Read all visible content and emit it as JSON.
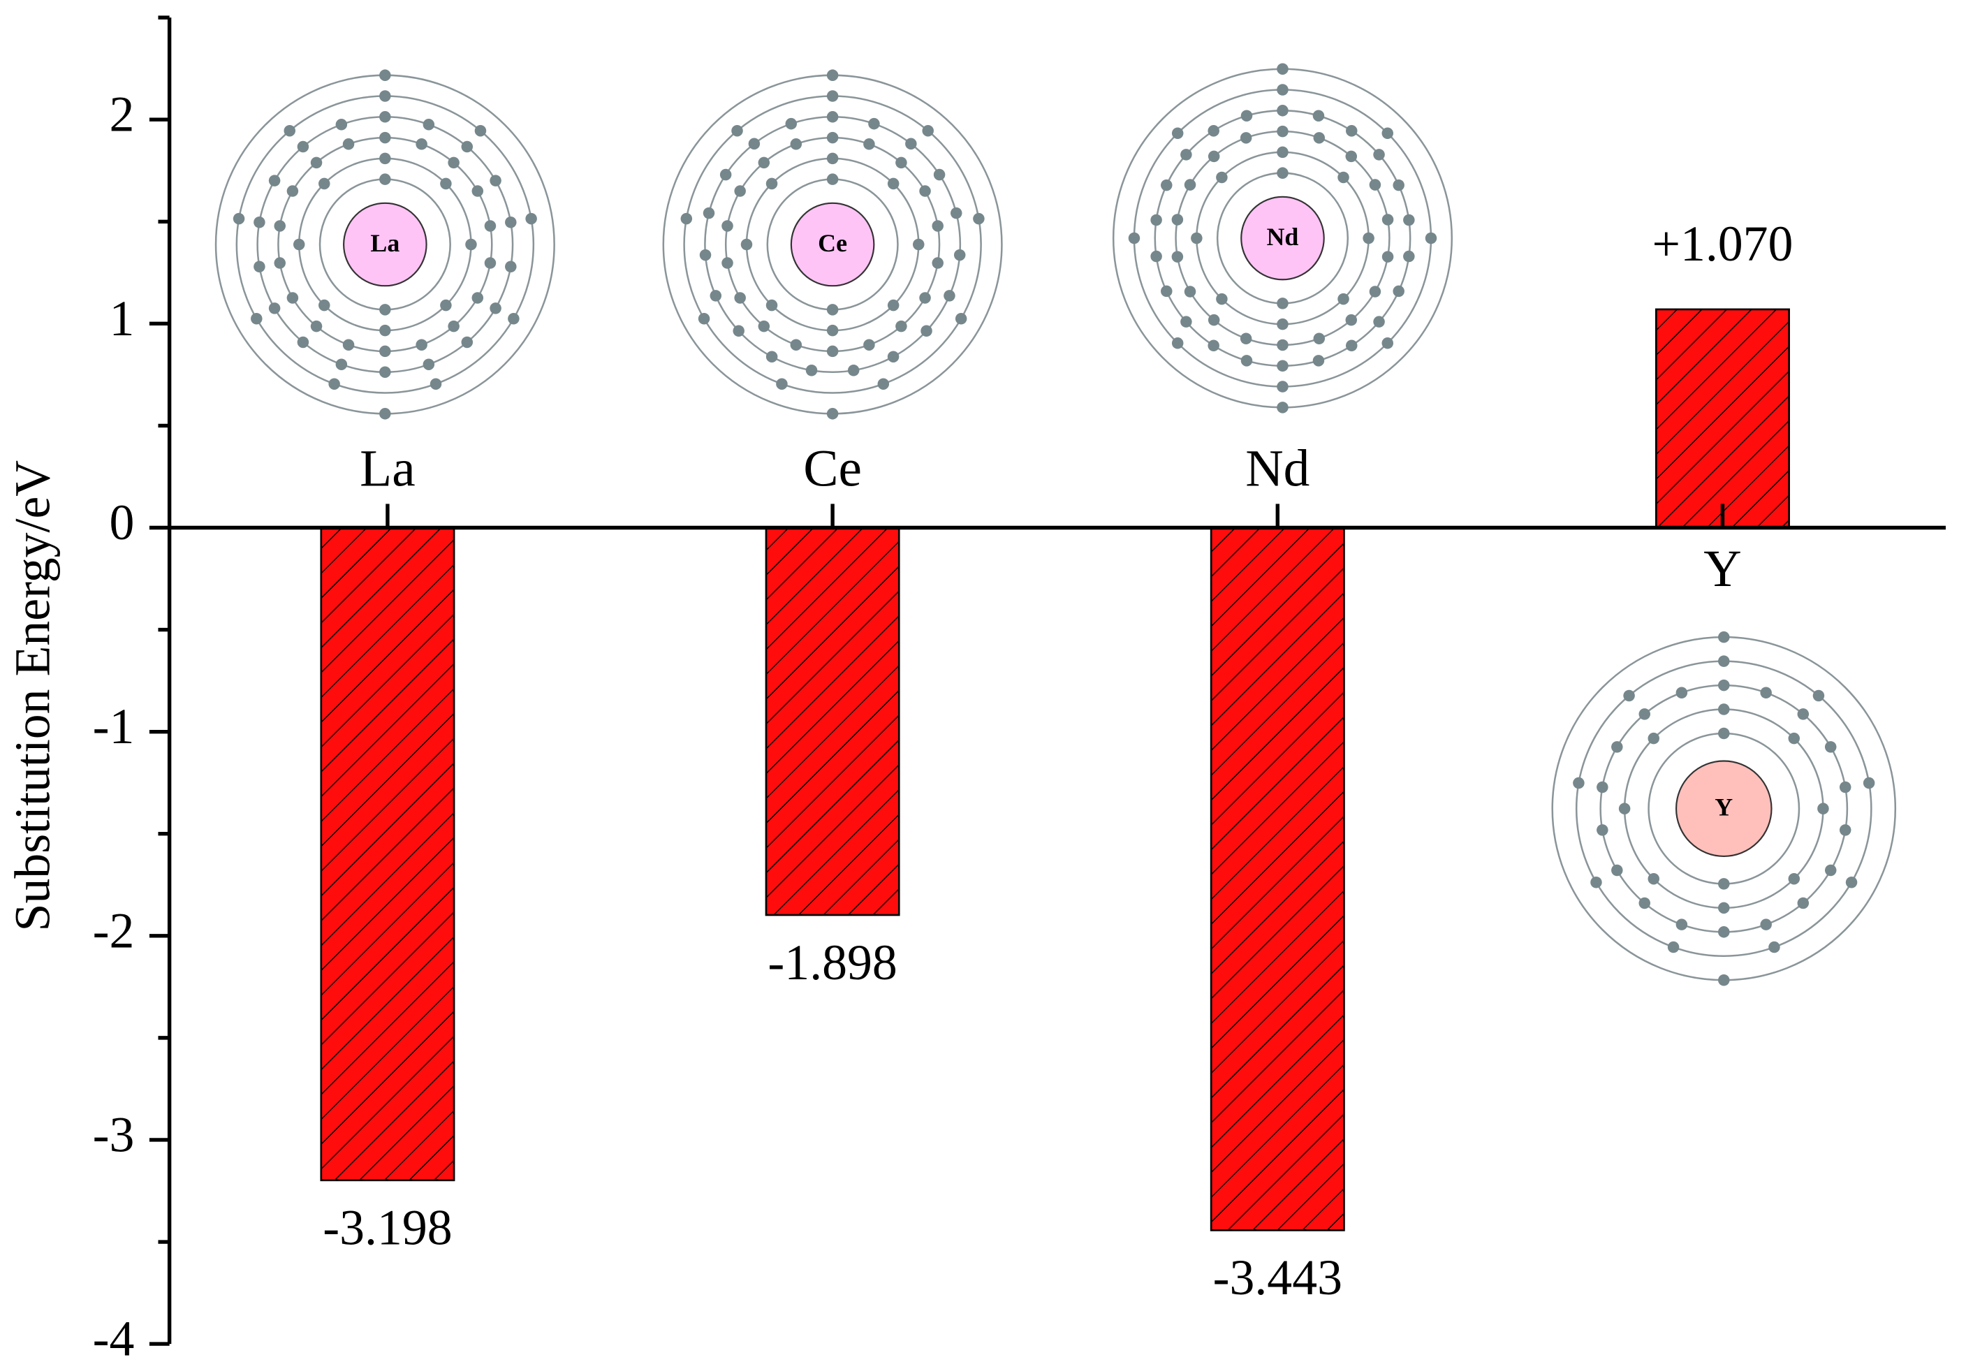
{
  "chart_data": {
    "type": "bar",
    "y_label": "Substitution Energy/eV",
    "categories": [
      "La",
      "Ce",
      "Nd",
      "Y"
    ],
    "values": [
      -3.198,
      -1.898,
      -3.443,
      1.07
    ],
    "value_labels": [
      "-3.198",
      "-1.898",
      "-3.443",
      "+1.070"
    ],
    "color": "#ff0d0d",
    "hatch": true,
    "ylim": [
      -4,
      2.5
    ],
    "yticks": [
      -4,
      -3,
      -2,
      -1,
      0,
      1,
      2
    ],
    "minor_yticks": [
      -3.5,
      -2.5,
      -1.5,
      -0.5,
      0.5,
      1.5,
      2.5
    ]
  }
}
